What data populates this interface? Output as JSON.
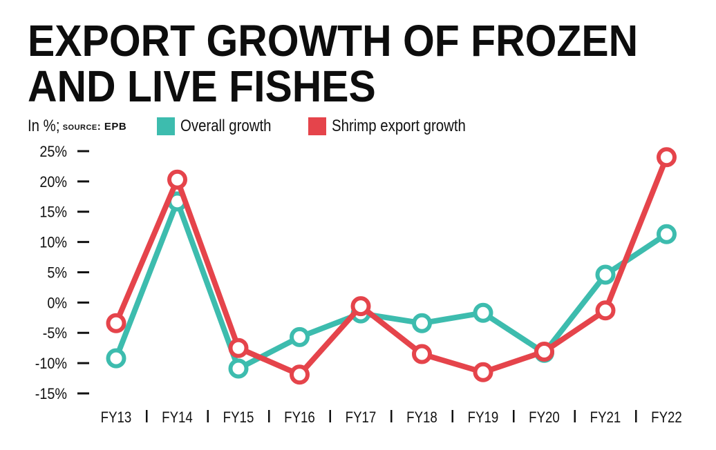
{
  "title": "EXPORT GROWTH OF FROZEN AND LIVE FISHES",
  "unit_label": "In %;",
  "source_label": "source: EPB",
  "colors": {
    "overall": "#3dbcae",
    "shrimp": "#e5444b"
  },
  "chart_data": {
    "type": "line",
    "title": "EXPORT GROWTH OF FROZEN AND LIVE FISHES",
    "xlabel": "",
    "ylabel": "In %",
    "categories": [
      "FY13",
      "FY14",
      "FY15",
      "FY16",
      "FY17",
      "FY18",
      "FY19",
      "FY20",
      "FY21",
      "FY22"
    ],
    "ylim": [
      -15,
      25
    ],
    "yticks": [
      "25%",
      "20%",
      "15%",
      "10%",
      "5%",
      "0%",
      "-5%",
      "-10%",
      "-15%"
    ],
    "legend_position": "top",
    "grid": false,
    "series": [
      {
        "name": "Overall growth",
        "values": [
          -9.2,
          16.7,
          -10.9,
          -5.7,
          -1.8,
          -3.4,
          -1.7,
          -8.3,
          4.6,
          11.3
        ]
      },
      {
        "name": "Shrimp export growth",
        "values": [
          -3.4,
          20.3,
          -7.5,
          -11.9,
          -0.6,
          -8.5,
          -11.5,
          -8.1,
          -1.3,
          24.0
        ]
      }
    ]
  }
}
